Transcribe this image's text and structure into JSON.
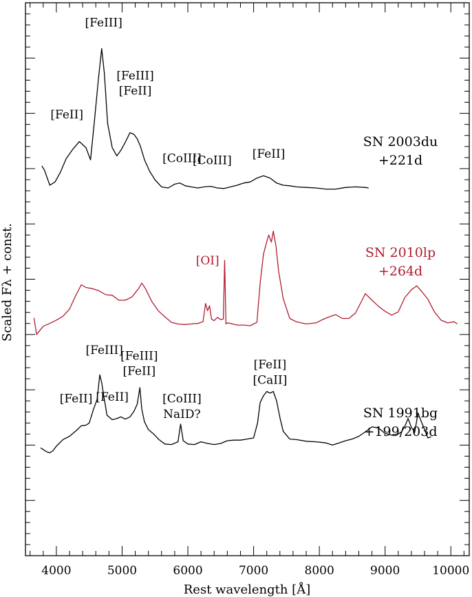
{
  "chart_data": {
    "type": "line",
    "title": "",
    "xlabel": "Rest wavelength [Å]",
    "ylabel": "Scaled Fλ + const.",
    "xlim": [
      3530,
      10280
    ],
    "ylim": [
      0,
      100
    ],
    "xticks": [
      4000,
      5000,
      6000,
      7000,
      8000,
      9000,
      10000
    ],
    "y_tick_labels": "none",
    "grid": false,
    "series": [
      {
        "name": "SN 2003du",
        "name_line2": "+221d",
        "color": "#000000",
        "x": [
          3780,
          3820,
          3900,
          3980,
          4060,
          4150,
          4250,
          4350,
          4450,
          4520,
          4580,
          4640,
          4690,
          4730,
          4780,
          4850,
          4920,
          4980,
          5050,
          5120,
          5180,
          5230,
          5280,
          5340,
          5420,
          5500,
          5600,
          5700,
          5800,
          5880,
          5960,
          6050,
          6150,
          6250,
          6350,
          6450,
          6550,
          6650,
          6750,
          6850,
          6950,
          7050,
          7150,
          7250,
          7350,
          7450,
          7550,
          7650,
          7800,
          7950,
          8100,
          8250,
          8400,
          8550,
          8700,
          8750
        ],
        "y": [
          70.5,
          69.7,
          67.0,
          67.6,
          69.3,
          71.8,
          73.5,
          74.9,
          73.8,
          71.6,
          78.7,
          86.3,
          91.7,
          87.2,
          78.2,
          73.8,
          72.3,
          73.3,
          74.8,
          76.5,
          76.2,
          75.4,
          74.0,
          71.6,
          69.5,
          68.0,
          66.7,
          66.5,
          67.2,
          67.4,
          66.9,
          66.7,
          66.5,
          66.7,
          66.8,
          66.5,
          66.4,
          66.7,
          67.0,
          67.4,
          67.6,
          68.3,
          68.7,
          68.3,
          67.4,
          67.0,
          66.9,
          66.7,
          66.6,
          66.5,
          66.3,
          66.3,
          66.6,
          66.7,
          66.6,
          66.5
        ]
      },
      {
        "name": "SN 2010lp",
        "name_line2": "+264d",
        "color": "#b11b2e",
        "x": [
          3660,
          3700,
          3800,
          3900,
          4000,
          4100,
          4200,
          4300,
          4380,
          4450,
          4550,
          4650,
          4750,
          4850,
          4950,
          5050,
          5150,
          5250,
          5300,
          5350,
          5450,
          5550,
          5650,
          5750,
          5850,
          5950,
          6050,
          6150,
          6230,
          6270,
          6300,
          6330,
          6360,
          6400,
          6450,
          6500,
          6540,
          6560,
          6580,
          6600,
          6650,
          6750,
          6850,
          6950,
          7050,
          7100,
          7150,
          7200,
          7230,
          7270,
          7300,
          7340,
          7380,
          7450,
          7550,
          7650,
          7800,
          7950,
          8050,
          8150,
          8250,
          8350,
          8450,
          8550,
          8650,
          8700,
          8800,
          8900,
          9000,
          9100,
          9200,
          9300,
          9400,
          9480,
          9550,
          9650,
          9750,
          9850,
          9950,
          10050,
          10100
        ],
        "y": [
          43.0,
          40.0,
          41.5,
          42.0,
          42.6,
          43.3,
          44.6,
          47.2,
          49.0,
          48.5,
          48.3,
          47.9,
          47.2,
          47.1,
          46.2,
          46.2,
          46.8,
          48.3,
          49.3,
          48.4,
          46.0,
          44.3,
          43.2,
          42.2,
          41.9,
          41.8,
          41.9,
          42.0,
          42.3,
          45.6,
          44.3,
          45.2,
          42.8,
          42.5,
          43.1,
          42.7,
          42.8,
          53.4,
          41.9,
          42.1,
          42.0,
          41.7,
          41.7,
          41.6,
          42.2,
          49.3,
          54.5,
          56.8,
          58.0,
          56.7,
          58.7,
          56.0,
          51.5,
          46.5,
          42.9,
          42.3,
          41.9,
          42.1,
          42.7,
          43.2,
          43.6,
          42.9,
          42.9,
          43.9,
          46.2,
          47.4,
          46.2,
          45.1,
          44.2,
          43.5,
          44.1,
          46.7,
          48.1,
          48.8,
          47.9,
          46.4,
          44.1,
          42.6,
          42.1,
          42.3,
          41.9
        ]
      },
      {
        "name": "SN 1991bg",
        "name_line2": "+199/203d",
        "color": "#000000",
        "x": [
          3760,
          3800,
          3850,
          3900,
          3950,
          4000,
          4100,
          4200,
          4300,
          4380,
          4450,
          4500,
          4560,
          4620,
          4660,
          4690,
          4720,
          4770,
          4850,
          4920,
          4980,
          5050,
          5120,
          5180,
          5230,
          5270,
          5300,
          5340,
          5400,
          5480,
          5560,
          5650,
          5750,
          5850,
          5890,
          5930,
          6000,
          6100,
          6200,
          6300,
          6400,
          6500,
          6600,
          6700,
          6800,
          6900,
          7000,
          7060,
          7100,
          7150,
          7200,
          7250,
          7300,
          7350,
          7400,
          7450,
          7550,
          7650,
          7800,
          7950,
          8100,
          8200,
          8300,
          8400,
          8500,
          8600,
          8700,
          8800,
          8900,
          9000,
          9100,
          9200,
          9250,
          9300,
          9350,
          9400,
          9450,
          9500,
          9550,
          9600,
          9650,
          9700
        ],
        "y": [
          19.5,
          19.2,
          18.8,
          18.6,
          19.0,
          19.8,
          21.0,
          21.6,
          22.6,
          23.5,
          23.6,
          24.0,
          26.3,
          28.3,
          32.7,
          31.3,
          29.0,
          25.4,
          24.6,
          24.8,
          25.1,
          24.7,
          25.1,
          26.1,
          27.4,
          30.4,
          26.5,
          24.2,
          22.8,
          22.0,
          21.0,
          20.2,
          20.1,
          20.6,
          23.8,
          20.8,
          20.2,
          20.1,
          20.6,
          20.3,
          20.1,
          20.3,
          20.8,
          20.9,
          20.9,
          21.1,
          21.3,
          24.0,
          27.7,
          28.9,
          29.7,
          29.4,
          29.7,
          28.0,
          25.0,
          22.5,
          21.1,
          21.0,
          20.7,
          20.6,
          20.4,
          20.0,
          20.4,
          20.8,
          21.1,
          21.6,
          22.4,
          23.3,
          23.1,
          22.1,
          21.8,
          22.0,
          22.4,
          23.4,
          24.8,
          23.2,
          22.3,
          25.8,
          24.3,
          22.8,
          21.3,
          21.5
        ]
      }
    ],
    "annotations": [
      {
        "text": "[FeIII]",
        "x": 4720,
        "y": 95.7,
        "color": "#000000"
      },
      {
        "text": "[FeIII]",
        "x": 5200,
        "y": 86.1,
        "color": "#000000"
      },
      {
        "text": "[FeII]",
        "x": 5200,
        "y": 83.4,
        "color": "#000000"
      },
      {
        "text": "[FeII]",
        "x": 4160,
        "y": 79.1,
        "color": "#000000"
      },
      {
        "text": "[CoIII]",
        "x": 5910,
        "y": 71.2,
        "color": "#000000"
      },
      {
        "text": "[CoIII]",
        "x": 6370,
        "y": 70.8,
        "color": "#000000"
      },
      {
        "text": "[FeII]",
        "x": 7230,
        "y": 72.0,
        "color": "#000000"
      },
      {
        "text": "[OI]",
        "x": 6300,
        "y": 52.7,
        "color": "#b11b2e"
      },
      {
        "text": "[FeIII]",
        "x": 4730,
        "y": 36.5,
        "color": "#000000"
      },
      {
        "text": "[FeIII]",
        "x": 5260,
        "y": 35.4,
        "color": "#000000"
      },
      {
        "text": "[FeII]",
        "x": 5260,
        "y": 32.7,
        "color": "#000000"
      },
      {
        "text": "[FeII]",
        "x": 4300,
        "y": 27.7,
        "color": "#000000"
      },
      {
        "text": "[FeII]",
        "x": 4850,
        "y": 28.0,
        "color": "#000000"
      },
      {
        "text": "[CoIII]",
        "x": 5910,
        "y": 27.7,
        "color": "#000000"
      },
      {
        "text": "NaID?",
        "x": 5910,
        "y": 24.9,
        "color": "#000000"
      },
      {
        "text": "[FeII]",
        "x": 7250,
        "y": 33.9,
        "color": "#000000"
      },
      {
        "text": "[CaII]",
        "x": 7250,
        "y": 31.1,
        "color": "#000000"
      }
    ]
  }
}
